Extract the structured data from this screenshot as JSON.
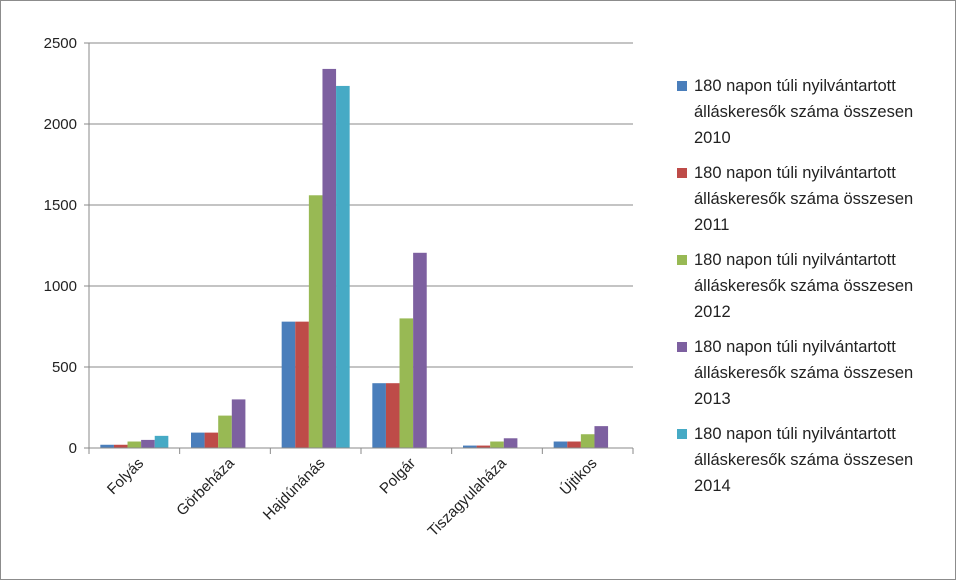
{
  "chart_data": {
    "type": "bar",
    "title": "",
    "xlabel": "",
    "ylabel": "",
    "categories": [
      "Folyás",
      "Görbeháza",
      "Hajdúnánás",
      "Polgár",
      "Tiszagyulaháza",
      "Újtikos"
    ],
    "ylim": [
      0,
      2500
    ],
    "yticks": [
      0,
      500,
      1000,
      1500,
      2000,
      2500
    ],
    "grid": true,
    "legend_position": "right",
    "series": [
      {
        "name": "180 napon túli nyilvántartott\nálláskeresők száma összesen\n2010",
        "color": "#4a7ebb",
        "values": [
          20,
          95,
          780,
          400,
          15,
          40
        ]
      },
      {
        "name": "180 napon túli nyilvántartott\nálláskeresők száma összesen\n2011",
        "color": "#be4b48",
        "values": [
          20,
          95,
          780,
          400,
          15,
          40
        ]
      },
      {
        "name": "180 napon túli nyilvántartott\nálláskeresők száma összesen\n2012",
        "color": "#98b954",
        "values": [
          40,
          200,
          1560,
          800,
          40,
          85
        ]
      },
      {
        "name": "180 napon túli nyilvántartott\nálláskeresők száma összesen\n2013",
        "color": "#7d60a0",
        "values": [
          50,
          300,
          2340,
          1205,
          60,
          135
        ]
      },
      {
        "name": "180 napon túli nyilvántartott\nálláskeresők száma összesen\n2014",
        "color": "#46aac5",
        "values": [
          75,
          null,
          2235,
          null,
          null,
          null
        ]
      }
    ]
  }
}
